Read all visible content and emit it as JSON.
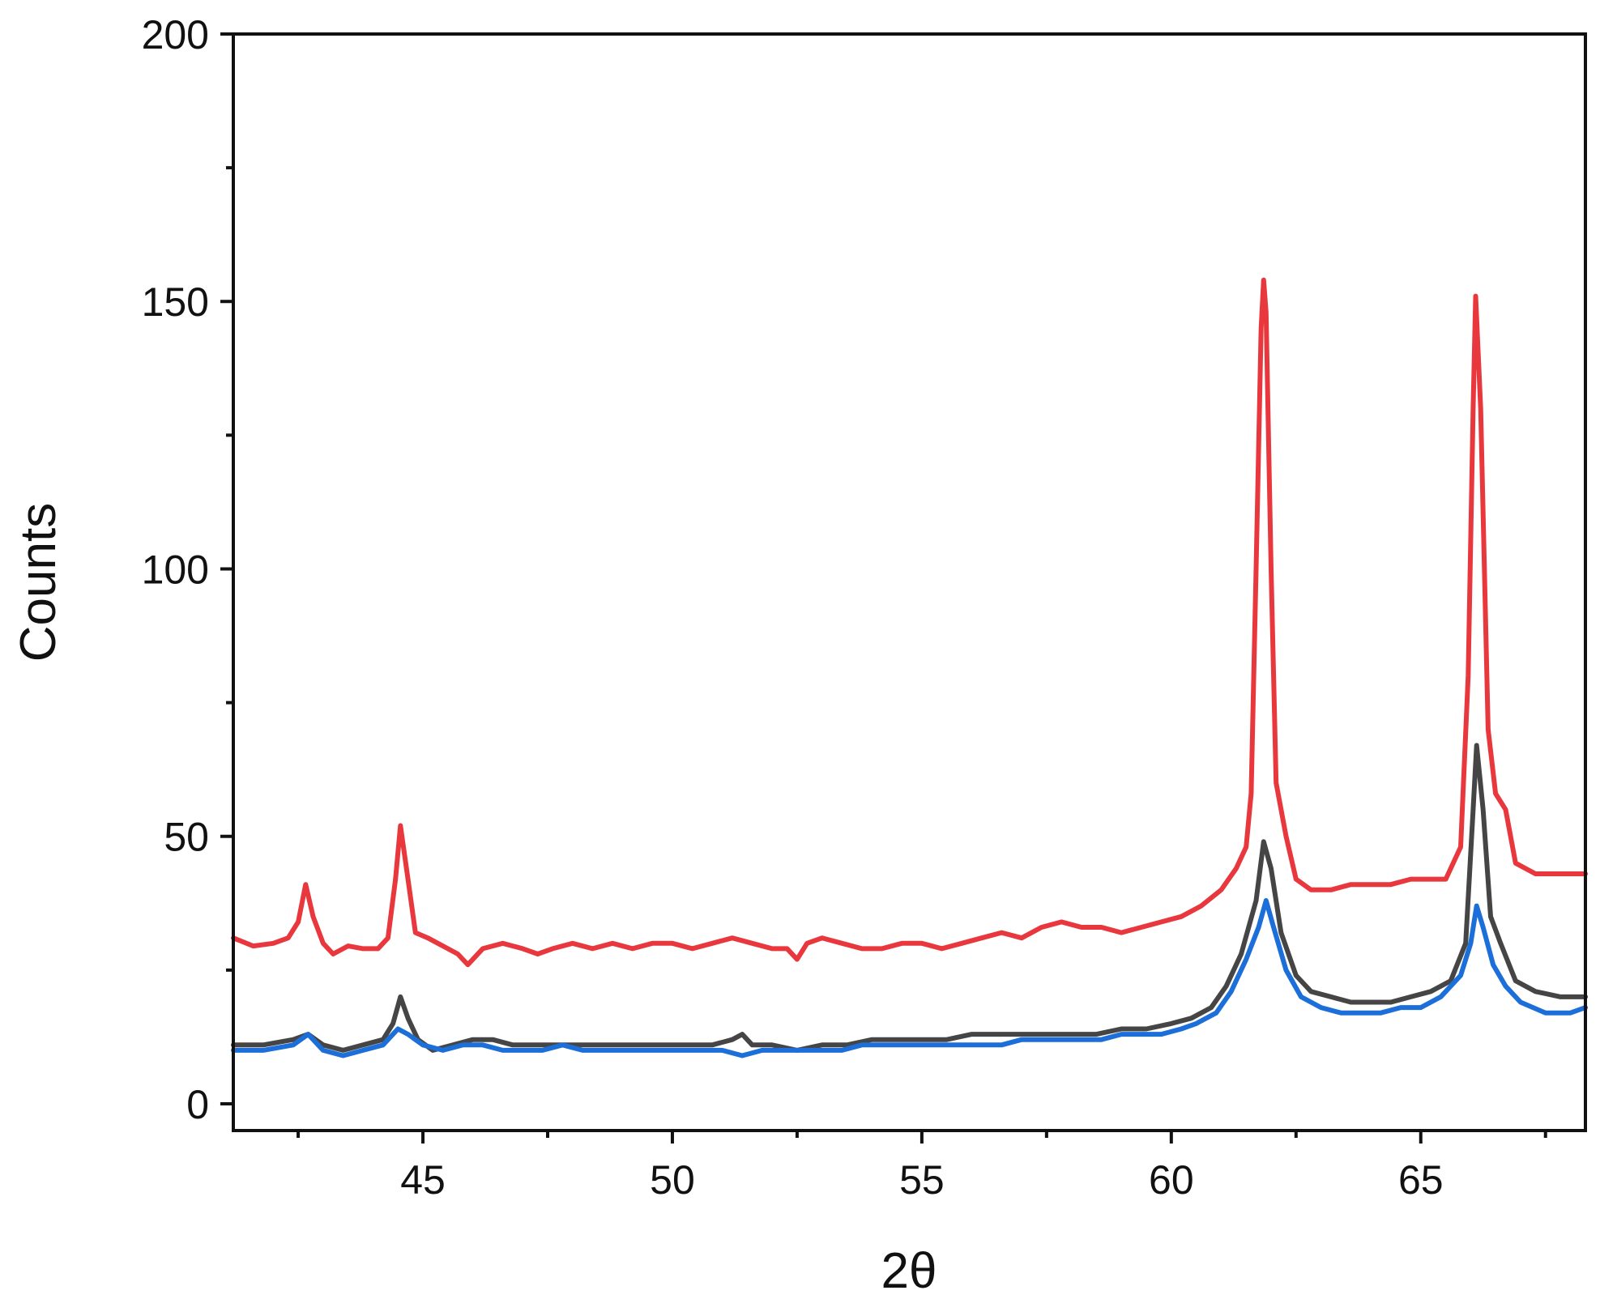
{
  "chart_data": {
    "type": "line",
    "title": "",
    "xlabel": "2θ",
    "ylabel": "Counts",
    "xlim": [
      41.2,
      68.3
    ],
    "ylim": [
      -5,
      200
    ],
    "x_ticks": [
      45,
      50,
      55,
      60,
      65
    ],
    "x_minor_ticks": [
      42.5,
      47.5,
      52.5,
      57.5,
      62.5,
      67.5
    ],
    "y_ticks": [
      0,
      50,
      100,
      150,
      200
    ],
    "y_minor_ticks": [
      25,
      75,
      125,
      175
    ],
    "grid": false,
    "legend": "none",
    "series": [
      {
        "color": "#e8383d",
        "points": [
          [
            41.2,
            31
          ],
          [
            41.6,
            29.5
          ],
          [
            42.0,
            30
          ],
          [
            42.3,
            31
          ],
          [
            42.5,
            34
          ],
          [
            42.65,
            41
          ],
          [
            42.8,
            35
          ],
          [
            43.0,
            30
          ],
          [
            43.2,
            28
          ],
          [
            43.5,
            29.5
          ],
          [
            43.8,
            29
          ],
          [
            44.1,
            29
          ],
          [
            44.3,
            31
          ],
          [
            44.45,
            42
          ],
          [
            44.55,
            52
          ],
          [
            44.7,
            42
          ],
          [
            44.85,
            32
          ],
          [
            45.1,
            31
          ],
          [
            45.3,
            30
          ],
          [
            45.5,
            29
          ],
          [
            45.7,
            28
          ],
          [
            45.9,
            26
          ],
          [
            46.2,
            29
          ],
          [
            46.6,
            30
          ],
          [
            47.0,
            29
          ],
          [
            47.3,
            28
          ],
          [
            47.6,
            29
          ],
          [
            48.0,
            30
          ],
          [
            48.4,
            29
          ],
          [
            48.8,
            30
          ],
          [
            49.2,
            29
          ],
          [
            49.6,
            30
          ],
          [
            50.0,
            30
          ],
          [
            50.4,
            29
          ],
          [
            50.8,
            30
          ],
          [
            51.2,
            31
          ],
          [
            51.6,
            30
          ],
          [
            52.0,
            29
          ],
          [
            52.3,
            29
          ],
          [
            52.5,
            27
          ],
          [
            52.7,
            30
          ],
          [
            53.0,
            31
          ],
          [
            53.4,
            30
          ],
          [
            53.8,
            29
          ],
          [
            54.2,
            29
          ],
          [
            54.6,
            30
          ],
          [
            55.0,
            30
          ],
          [
            55.4,
            29
          ],
          [
            55.8,
            30
          ],
          [
            56.2,
            31
          ],
          [
            56.6,
            32
          ],
          [
            57.0,
            31
          ],
          [
            57.4,
            33
          ],
          [
            57.8,
            34
          ],
          [
            58.2,
            33
          ],
          [
            58.6,
            33
          ],
          [
            59.0,
            32
          ],
          [
            59.4,
            33
          ],
          [
            59.8,
            34
          ],
          [
            60.2,
            35
          ],
          [
            60.6,
            37
          ],
          [
            61.0,
            40
          ],
          [
            61.3,
            44
          ],
          [
            61.5,
            48
          ],
          [
            61.6,
            58
          ],
          [
            61.7,
            100
          ],
          [
            61.8,
            145
          ],
          [
            61.85,
            154
          ],
          [
            61.9,
            148
          ],
          [
            62.0,
            100
          ],
          [
            62.1,
            60
          ],
          [
            62.3,
            50
          ],
          [
            62.5,
            42
          ],
          [
            62.8,
            40
          ],
          [
            63.2,
            40
          ],
          [
            63.6,
            41
          ],
          [
            64.0,
            41
          ],
          [
            64.4,
            41
          ],
          [
            64.8,
            42
          ],
          [
            65.2,
            42
          ],
          [
            65.5,
            42
          ],
          [
            65.8,
            48
          ],
          [
            65.95,
            80
          ],
          [
            66.05,
            130
          ],
          [
            66.1,
            151
          ],
          [
            66.2,
            130
          ],
          [
            66.35,
            70
          ],
          [
            66.5,
            58
          ],
          [
            66.7,
            55
          ],
          [
            66.9,
            45
          ],
          [
            67.3,
            43
          ],
          [
            67.8,
            43
          ],
          [
            68.3,
            43
          ]
        ]
      },
      {
        "color": "#454545",
        "points": [
          [
            41.2,
            11
          ],
          [
            41.8,
            11
          ],
          [
            42.4,
            12
          ],
          [
            42.7,
            13
          ],
          [
            43.0,
            11
          ],
          [
            43.4,
            10
          ],
          [
            43.8,
            11
          ],
          [
            44.2,
            12
          ],
          [
            44.4,
            15
          ],
          [
            44.55,
            20
          ],
          [
            44.7,
            16
          ],
          [
            44.9,
            12
          ],
          [
            45.2,
            10
          ],
          [
            45.6,
            11
          ],
          [
            46.0,
            12
          ],
          [
            46.4,
            12
          ],
          [
            46.8,
            11
          ],
          [
            47.2,
            11
          ],
          [
            47.6,
            11
          ],
          [
            48.0,
            11
          ],
          [
            48.4,
            11
          ],
          [
            48.8,
            11
          ],
          [
            49.2,
            11
          ],
          [
            49.6,
            11
          ],
          [
            50.0,
            11
          ],
          [
            50.4,
            11
          ],
          [
            50.8,
            11
          ],
          [
            51.2,
            12
          ],
          [
            51.4,
            13
          ],
          [
            51.6,
            11
          ],
          [
            52.0,
            11
          ],
          [
            52.5,
            10
          ],
          [
            53.0,
            11
          ],
          [
            53.5,
            11
          ],
          [
            54.0,
            12
          ],
          [
            54.5,
            12
          ],
          [
            55.0,
            12
          ],
          [
            55.5,
            12
          ],
          [
            56.0,
            13
          ],
          [
            56.5,
            13
          ],
          [
            57.0,
            13
          ],
          [
            57.5,
            13
          ],
          [
            58.0,
            13
          ],
          [
            58.5,
            13
          ],
          [
            59.0,
            14
          ],
          [
            59.5,
            14
          ],
          [
            60.0,
            15
          ],
          [
            60.4,
            16
          ],
          [
            60.8,
            18
          ],
          [
            61.1,
            22
          ],
          [
            61.4,
            28
          ],
          [
            61.7,
            38
          ],
          [
            61.85,
            49
          ],
          [
            62.0,
            44
          ],
          [
            62.2,
            32
          ],
          [
            62.5,
            24
          ],
          [
            62.8,
            21
          ],
          [
            63.2,
            20
          ],
          [
            63.6,
            19
          ],
          [
            64.0,
            19
          ],
          [
            64.4,
            19
          ],
          [
            64.8,
            20
          ],
          [
            65.2,
            21
          ],
          [
            65.6,
            23
          ],
          [
            65.9,
            30
          ],
          [
            66.05,
            55
          ],
          [
            66.12,
            67
          ],
          [
            66.25,
            55
          ],
          [
            66.4,
            35
          ],
          [
            66.6,
            30
          ],
          [
            66.9,
            23
          ],
          [
            67.3,
            21
          ],
          [
            67.8,
            20
          ],
          [
            68.3,
            20
          ]
        ]
      },
      {
        "color": "#1c6fd9",
        "points": [
          [
            41.2,
            10
          ],
          [
            41.8,
            10
          ],
          [
            42.4,
            11
          ],
          [
            42.7,
            13
          ],
          [
            43.0,
            10
          ],
          [
            43.4,
            9
          ],
          [
            43.8,
            10
          ],
          [
            44.2,
            11
          ],
          [
            44.5,
            14
          ],
          [
            44.7,
            13
          ],
          [
            45.0,
            11
          ],
          [
            45.4,
            10
          ],
          [
            45.8,
            11
          ],
          [
            46.2,
            11
          ],
          [
            46.6,
            10
          ],
          [
            47.0,
            10
          ],
          [
            47.4,
            10
          ],
          [
            47.8,
            11
          ],
          [
            48.2,
            10
          ],
          [
            48.6,
            10
          ],
          [
            49.0,
            10
          ],
          [
            49.4,
            10
          ],
          [
            49.8,
            10
          ],
          [
            50.2,
            10
          ],
          [
            50.6,
            10
          ],
          [
            51.0,
            10
          ],
          [
            51.4,
            9
          ],
          [
            51.8,
            10
          ],
          [
            52.2,
            10
          ],
          [
            52.6,
            10
          ],
          [
            53.0,
            10
          ],
          [
            53.4,
            10
          ],
          [
            53.8,
            11
          ],
          [
            54.2,
            11
          ],
          [
            54.6,
            11
          ],
          [
            55.0,
            11
          ],
          [
            55.4,
            11
          ],
          [
            55.8,
            11
          ],
          [
            56.2,
            11
          ],
          [
            56.6,
            11
          ],
          [
            57.0,
            12
          ],
          [
            57.4,
            12
          ],
          [
            57.8,
            12
          ],
          [
            58.2,
            12
          ],
          [
            58.6,
            12
          ],
          [
            59.0,
            13
          ],
          [
            59.4,
            13
          ],
          [
            59.8,
            13
          ],
          [
            60.2,
            14
          ],
          [
            60.5,
            15
          ],
          [
            60.9,
            17
          ],
          [
            61.2,
            21
          ],
          [
            61.5,
            27
          ],
          [
            61.75,
            33
          ],
          [
            61.9,
            38
          ],
          [
            62.05,
            33
          ],
          [
            62.3,
            25
          ],
          [
            62.6,
            20
          ],
          [
            63.0,
            18
          ],
          [
            63.4,
            17
          ],
          [
            63.8,
            17
          ],
          [
            64.2,
            17
          ],
          [
            64.6,
            18
          ],
          [
            65.0,
            18
          ],
          [
            65.4,
            20
          ],
          [
            65.8,
            24
          ],
          [
            66.0,
            30
          ],
          [
            66.12,
            37
          ],
          [
            66.25,
            33
          ],
          [
            66.45,
            26
          ],
          [
            66.7,
            22
          ],
          [
            67.0,
            19
          ],
          [
            67.5,
            17
          ],
          [
            68.0,
            17
          ],
          [
            68.3,
            18
          ]
        ]
      }
    ]
  }
}
